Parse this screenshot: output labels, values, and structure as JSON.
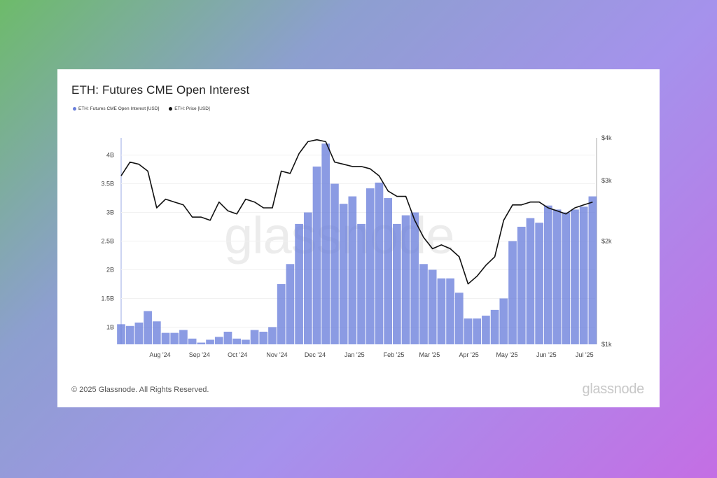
{
  "title": "ETH: Futures CME Open Interest",
  "legend": [
    {
      "label": "ETH: Futures CME Open Interest [USD]",
      "color": "#6a7fdb"
    },
    {
      "label": "ETH: Price [USD]",
      "color": "#111111"
    }
  ],
  "footer": {
    "copyright": "© 2025 Glassnode. All Rights Reserved.",
    "logo": "glassnode"
  },
  "watermark": "glassnode",
  "chart_data": {
    "type": "bar",
    "title": "ETH: Futures CME Open Interest",
    "x_labels": [
      "Aug '24",
      "Sep '24",
      "Oct '24",
      "Nov '24",
      "Dec '24",
      "Jan '25",
      "Feb '25",
      "Mar '25",
      "Apr '25",
      "May '25",
      "Jun '25",
      "Jul '25"
    ],
    "y_left_ticks": [
      "1B",
      "1.5B",
      "2B",
      "2.5B",
      "3B",
      "3.5B",
      "4B"
    ],
    "y_left_range": [
      0.7,
      4.3
    ],
    "y_right_ticks": [
      "$1k",
      "$2k",
      "$3k",
      "$4k"
    ],
    "y_right_scale": "log",
    "y_right_range": [
      1000,
      4000
    ],
    "series": [
      {
        "name": "ETH: Futures CME Open Interest [USD]",
        "type": "bar",
        "axis": "left",
        "color": "#6a7fdb",
        "points": [
          [
            "2024-07-08",
            1.05
          ],
          [
            "2024-07-15",
            1.02
          ],
          [
            "2024-07-22",
            1.08
          ],
          [
            "2024-07-29",
            1.28
          ],
          [
            "2024-08-05",
            1.1
          ],
          [
            "2024-08-12",
            0.9
          ],
          [
            "2024-08-19",
            0.9
          ],
          [
            "2024-08-26",
            0.95
          ],
          [
            "2024-09-02",
            0.8
          ],
          [
            "2024-09-09",
            0.73
          ],
          [
            "2024-09-16",
            0.78
          ],
          [
            "2024-09-23",
            0.83
          ],
          [
            "2024-09-30",
            0.92
          ],
          [
            "2024-10-07",
            0.8
          ],
          [
            "2024-10-14",
            0.78
          ],
          [
            "2024-10-21",
            0.95
          ],
          [
            "2024-10-28",
            0.92
          ],
          [
            "2024-11-04",
            1.0
          ],
          [
            "2024-11-11",
            1.75
          ],
          [
            "2024-11-18",
            2.1
          ],
          [
            "2024-11-25",
            2.8
          ],
          [
            "2024-12-02",
            3.0
          ],
          [
            "2024-12-09",
            3.8
          ],
          [
            "2024-12-16",
            4.2
          ],
          [
            "2024-12-23",
            3.5
          ],
          [
            "2024-12-30",
            3.15
          ],
          [
            "2025-01-06",
            3.28
          ],
          [
            "2025-01-13",
            2.8
          ],
          [
            "2025-01-20",
            3.42
          ],
          [
            "2025-01-27",
            3.52
          ],
          [
            "2025-02-03",
            3.25
          ],
          [
            "2025-02-10",
            2.8
          ],
          [
            "2025-02-17",
            2.95
          ],
          [
            "2025-02-24",
            3.0
          ],
          [
            "2025-03-03",
            2.1
          ],
          [
            "2025-03-10",
            2.0
          ],
          [
            "2025-03-17",
            1.85
          ],
          [
            "2025-03-24",
            1.85
          ],
          [
            "2025-03-31",
            1.6
          ],
          [
            "2025-04-07",
            1.15
          ],
          [
            "2025-04-14",
            1.15
          ],
          [
            "2025-04-21",
            1.2
          ],
          [
            "2025-04-28",
            1.3
          ],
          [
            "2025-05-05",
            1.5
          ],
          [
            "2025-05-12",
            2.5
          ],
          [
            "2025-05-19",
            2.75
          ],
          [
            "2025-05-26",
            2.9
          ],
          [
            "2025-06-02",
            2.82
          ],
          [
            "2025-06-09",
            3.12
          ],
          [
            "2025-06-16",
            3.05
          ],
          [
            "2025-06-23",
            3.0
          ],
          [
            "2025-06-30",
            3.05
          ],
          [
            "2025-07-07",
            3.1
          ],
          [
            "2025-07-14",
            3.28
          ]
        ]
      },
      {
        "name": "ETH: Price [USD]",
        "type": "line",
        "axis": "right",
        "color": "#111111",
        "points": [
          [
            "2024-07-08",
            3100
          ],
          [
            "2024-07-15",
            3400
          ],
          [
            "2024-07-22",
            3350
          ],
          [
            "2024-07-29",
            3200
          ],
          [
            "2024-08-05",
            2500
          ],
          [
            "2024-08-12",
            2650
          ],
          [
            "2024-08-19",
            2600
          ],
          [
            "2024-08-26",
            2550
          ],
          [
            "2024-09-02",
            2350
          ],
          [
            "2024-09-09",
            2350
          ],
          [
            "2024-09-16",
            2300
          ],
          [
            "2024-09-23",
            2600
          ],
          [
            "2024-09-30",
            2450
          ],
          [
            "2024-10-07",
            2400
          ],
          [
            "2024-10-14",
            2650
          ],
          [
            "2024-10-21",
            2600
          ],
          [
            "2024-10-28",
            2500
          ],
          [
            "2024-11-04",
            2500
          ],
          [
            "2024-11-11",
            3200
          ],
          [
            "2024-11-18",
            3150
          ],
          [
            "2024-11-25",
            3600
          ],
          [
            "2024-12-02",
            3900
          ],
          [
            "2024-12-09",
            3950
          ],
          [
            "2024-12-16",
            3900
          ],
          [
            "2024-12-23",
            3400
          ],
          [
            "2024-12-30",
            3350
          ],
          [
            "2025-01-06",
            3300
          ],
          [
            "2025-01-13",
            3300
          ],
          [
            "2025-01-20",
            3250
          ],
          [
            "2025-01-27",
            3100
          ],
          [
            "2025-02-03",
            2800
          ],
          [
            "2025-02-10",
            2700
          ],
          [
            "2025-02-17",
            2700
          ],
          [
            "2025-02-24",
            2300
          ],
          [
            "2025-03-03",
            2050
          ],
          [
            "2025-03-10",
            1900
          ],
          [
            "2025-03-17",
            1950
          ],
          [
            "2025-03-24",
            1900
          ],
          [
            "2025-03-31",
            1800
          ],
          [
            "2025-04-07",
            1500
          ],
          [
            "2025-04-14",
            1580
          ],
          [
            "2025-04-21",
            1700
          ],
          [
            "2025-04-28",
            1800
          ],
          [
            "2025-05-05",
            2300
          ],
          [
            "2025-05-12",
            2550
          ],
          [
            "2025-05-19",
            2550
          ],
          [
            "2025-05-26",
            2600
          ],
          [
            "2025-06-02",
            2600
          ],
          [
            "2025-06-09",
            2500
          ],
          [
            "2025-06-16",
            2450
          ],
          [
            "2025-06-23",
            2400
          ],
          [
            "2025-06-30",
            2500
          ],
          [
            "2025-07-07",
            2550
          ],
          [
            "2025-07-14",
            2600
          ]
        ]
      }
    ],
    "grid": true,
    "legend_position": "top-left"
  }
}
